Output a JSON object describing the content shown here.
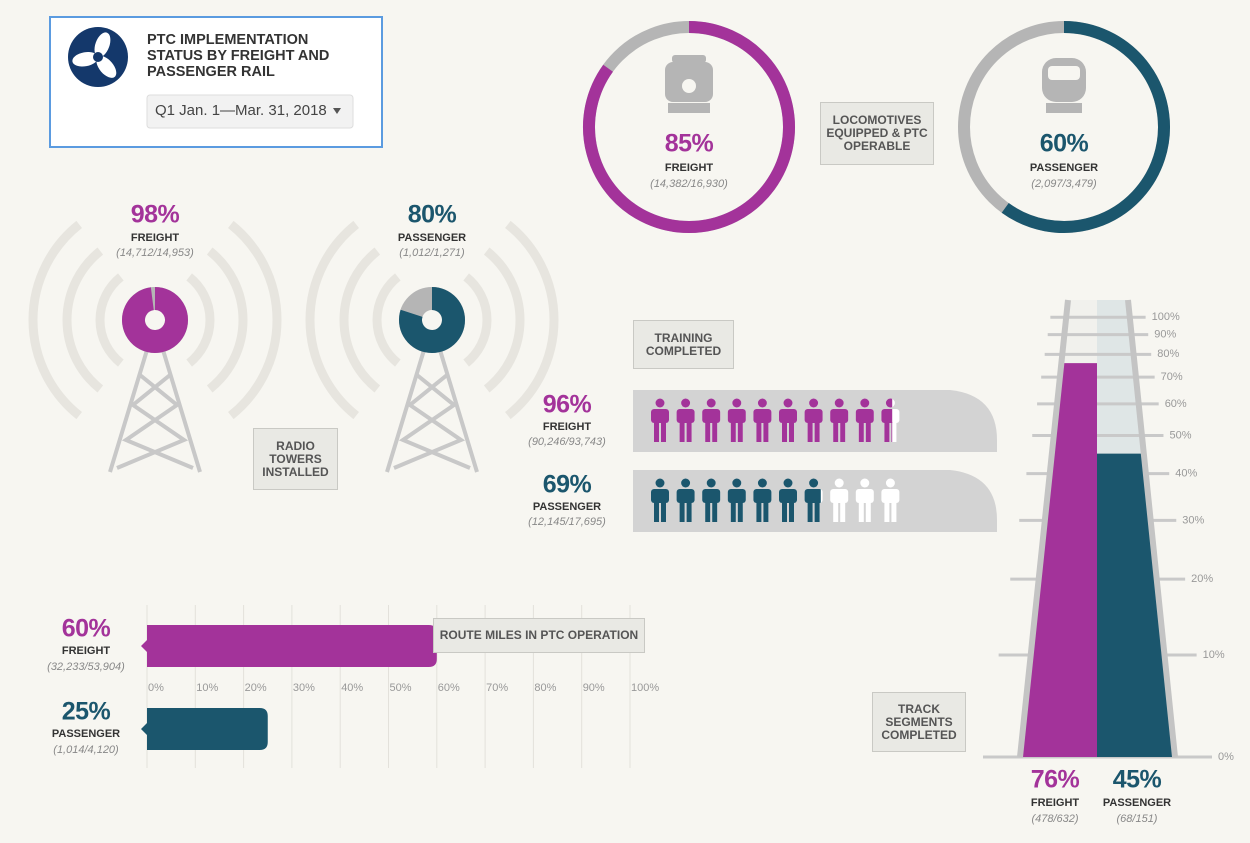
{
  "header": {
    "title": "PTC IMPLEMENTATION STATUS BY FREIGHT AND PASSENGER RAIL",
    "period": "Q1 Jan. 1—Mar. 31, 2018"
  },
  "chart_data": [
    {
      "type": "donut",
      "title": "LOCOMOTIVES EQUIPPED & PTC OPERABLE",
      "categories": [
        "FREIGHT",
        "PASSENGER"
      ],
      "values": [
        85,
        60
      ],
      "value_labels": [
        "85%",
        "60%"
      ],
      "details": [
        "(14,382/16,930)",
        "(2,097/3,479)"
      ],
      "colors": [
        "#a3339a",
        "#1b566d"
      ],
      "rest_color": "#b5b5b5"
    },
    {
      "type": "tower",
      "title": "RADIO TOWERS INSTALLED",
      "categories": [
        "FREIGHT",
        "PASSENGER"
      ],
      "values": [
        98,
        80
      ],
      "value_labels": [
        "98%",
        "80%"
      ],
      "details": [
        "(14,712/14,953)",
        "(1,012/1,271)"
      ],
      "colors": [
        "#a3339a",
        "#1b566d"
      ],
      "rest_color": "#b5b5b5"
    },
    {
      "type": "pictogram",
      "title": "TRAINING COMPLETED",
      "categories": [
        "FREIGHT",
        "PASSENGER"
      ],
      "values": [
        96,
        69
      ],
      "value_labels": [
        "96%",
        "69%"
      ],
      "details": [
        "(90,246/93,743)",
        "(12,145/17,695)"
      ],
      "colors": [
        "#a3339a",
        "#1b566d"
      ],
      "rest_color": "#ffffff"
    },
    {
      "type": "bar",
      "title": "ROUTE MILES IN PTC OPERATION",
      "categories": [
        "FREIGHT",
        "PASSENGER"
      ],
      "values": [
        60,
        25
      ],
      "value_labels": [
        "60%",
        "25%"
      ],
      "details": [
        "(32,233/53,904)",
        "(1,014/4,120)"
      ],
      "colors": [
        "#a3339a",
        "#1b566d"
      ],
      "xlim": [
        0,
        100
      ],
      "xticks": [
        {
          "value": 0,
          "label": "0%"
        },
        {
          "value": 10,
          "label": "10%"
        },
        {
          "value": 20,
          "label": "20%"
        },
        {
          "value": 30,
          "label": "30%"
        },
        {
          "value": 40,
          "label": "40%"
        },
        {
          "value": 50,
          "label": "50%"
        },
        {
          "value": 60,
          "label": "60%"
        },
        {
          "value": 70,
          "label": "70%"
        },
        {
          "value": 80,
          "label": "80%"
        },
        {
          "value": 90,
          "label": "90%"
        },
        {
          "value": 100,
          "label": "100%"
        }
      ],
      "grid": true
    },
    {
      "type": "track",
      "title": "TRACK SEGMENTS COMPLETED",
      "categories": [
        "FREIGHT",
        "PASSENGER"
      ],
      "values": [
        76,
        45
      ],
      "value_labels": [
        "76%",
        "45%"
      ],
      "details": [
        "(478/632)",
        "(68/151)"
      ],
      "colors": [
        "#a3339a",
        "#1b566d"
      ],
      "ylim": [
        0,
        100
      ],
      "yticks": [
        {
          "value": 0,
          "label": "0%"
        },
        {
          "value": 10,
          "label": "10%"
        },
        {
          "value": 20,
          "label": "20%"
        },
        {
          "value": 30,
          "label": "30%"
        },
        {
          "value": 40,
          "label": "40%"
        },
        {
          "value": 50,
          "label": "50%"
        },
        {
          "value": 60,
          "label": "60%"
        },
        {
          "value": 70,
          "label": "70%"
        },
        {
          "value": 80,
          "label": "80%"
        },
        {
          "value": 90,
          "label": "90%"
        },
        {
          "value": 100,
          "label": "100%"
        }
      ],
      "grid": true
    }
  ]
}
